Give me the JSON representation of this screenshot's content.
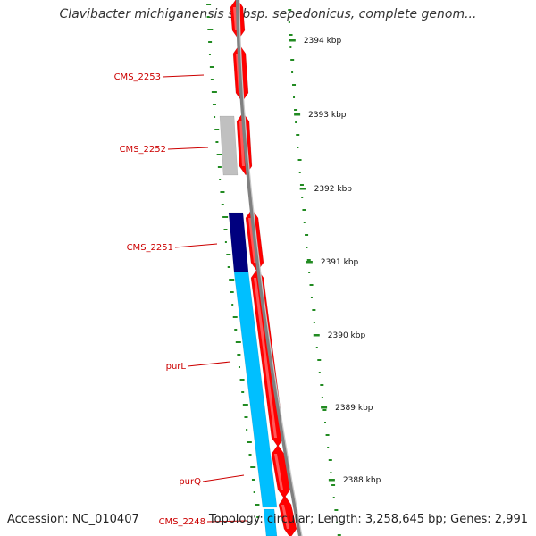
{
  "title": "Clavibacter michiganensis subsp. sepedonicus, complete genom...",
  "accession": "Accession: NC_010407",
  "summary": "Topology: circular; Length: 3,258,645 bp; Genes: 2,991",
  "colors": {
    "forward_cds": "#ff0000",
    "reverse_cds_light": "#00bfff",
    "reverse_cds_dark": "#00007f",
    "other_feature": "#c0c0c0",
    "label_red": "#cc0000",
    "gc_ticks": "#228b22",
    "backbone": "#808080"
  },
  "scale_ticks": [
    {
      "kbp": 2394,
      "label": "2394 kbp"
    },
    {
      "kbp": 2393,
      "label": "2393 kbp"
    },
    {
      "kbp": 2392,
      "label": "2392 kbp"
    },
    {
      "kbp": 2391,
      "label": "2391 kbp"
    },
    {
      "kbp": 2390,
      "label": "2390 kbp"
    },
    {
      "kbp": 2389,
      "label": "2389 kbp"
    },
    {
      "kbp": 2388,
      "label": "2388 kbp"
    }
  ],
  "gene_labels": [
    {
      "id": "cms2253",
      "text": "CMS_2253"
    },
    {
      "id": "cms2252",
      "text": "CMS_2252"
    },
    {
      "id": "cms2251",
      "text": "CMS_2251"
    },
    {
      "id": "purl",
      "text": "purL"
    },
    {
      "id": "purq",
      "text": "purQ"
    },
    {
      "id": "cms2248",
      "text": "CMS_2248"
    }
  ]
}
